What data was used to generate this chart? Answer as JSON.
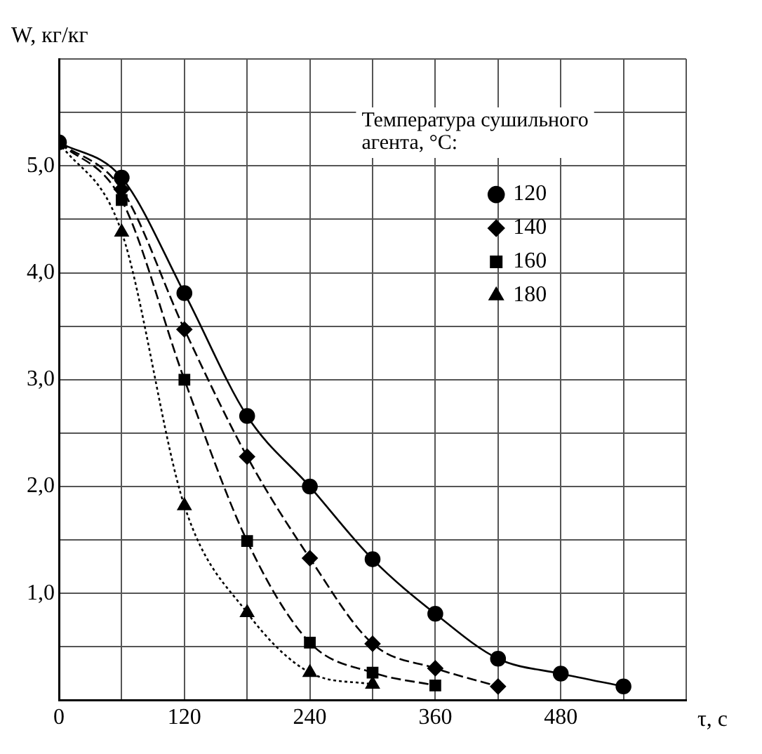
{
  "chart_data": {
    "type": "line",
    "xlabel": "τ, с",
    "ylabel": "W, кг/кг",
    "legend_title": "Температура сушильного агента, °C:",
    "legend": "top right",
    "grid": true,
    "xlim": [
      0,
      600
    ],
    "xticks": [
      0,
      {
        "value": 60,
        "label": null
      },
      120,
      {
        "value": 180,
        "label": null
      },
      240,
      {
        "value": 300,
        "label": null
      },
      360,
      {
        "value": 420,
        "label": null
      },
      480,
      {
        "value": 540,
        "label": null
      },
      {
        "value": 600,
        "label": null
      }
    ],
    "ylim": [
      0,
      6
    ],
    "yticks": [
      {
        "value": 0,
        "label": null
      },
      {
        "value": 0.5,
        "label": null
      },
      {
        "value": 1,
        "label": "1,0"
      },
      {
        "value": 1.5,
        "label": null
      },
      {
        "value": 2,
        "label": "2,0"
      },
      {
        "value": 2.5,
        "label": null
      },
      {
        "value": 3,
        "label": "3,0"
      },
      {
        "value": 3.5,
        "label": null
      },
      {
        "value": 4,
        "label": "4,0"
      },
      {
        "value": 4.5,
        "label": null
      },
      {
        "value": 5,
        "label": "5,0"
      },
      {
        "value": 5.5,
        "label": null
      },
      {
        "value": 6,
        "label": null
      }
    ],
    "series": [
      {
        "name": "120",
        "color": "#000000",
        "marker": "circle",
        "line_style": "solid",
        "x": [
          0,
          60,
          120,
          180,
          240,
          300,
          360,
          420,
          480,
          540
        ],
        "values": [
          5.22,
          4.89,
          3.81,
          2.66,
          2.0,
          1.32,
          0.81,
          0.39,
          0.25,
          0.13
        ]
      },
      {
        "name": "140",
        "color": "#000000",
        "marker": "diamond",
        "line_style": "dashed",
        "x": [
          0,
          60,
          120,
          180,
          240,
          300,
          360,
          420
        ],
        "values": [
          5.22,
          4.78,
          3.47,
          2.28,
          1.33,
          0.53,
          0.3,
          0.13
        ]
      },
      {
        "name": "160",
        "color": "#000000",
        "marker": "square",
        "line_style": "dashed",
        "x": [
          0,
          60,
          120,
          180,
          240,
          300,
          360
        ],
        "values": [
          5.22,
          4.68,
          3.0,
          1.49,
          0.54,
          0.26,
          0.14
        ]
      },
      {
        "name": "180",
        "color": "#000000",
        "marker": "triangle",
        "line_style": "dotted",
        "x": [
          0,
          60,
          120,
          180,
          240,
          300
        ],
        "values": [
          5.22,
          4.38,
          1.82,
          0.82,
          0.26,
          0.15
        ]
      }
    ]
  }
}
